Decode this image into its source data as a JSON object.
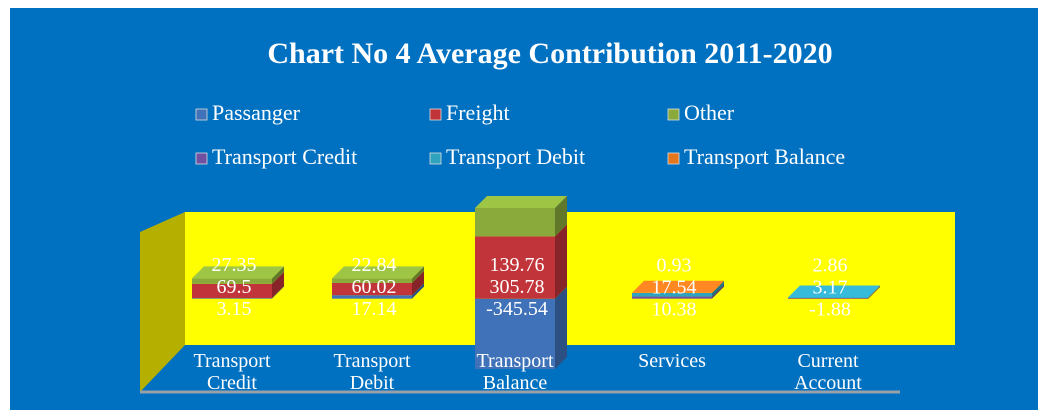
{
  "chart_data": {
    "type": "bar3d-stacked",
    "title": "Chart No 4 Average Contribution 2011-2020",
    "categories": [
      "Transport Credit",
      "Transport Debit",
      "Transport Balance",
      "Services",
      "Current Account"
    ],
    "series": [
      {
        "name": "Passanger",
        "color": "#3f72b8",
        "values": [
          3.15,
          17.14,
          -345.54,
          null,
          null
        ]
      },
      {
        "name": "Freight",
        "color": "#c0343a",
        "values": [
          69.5,
          60.02,
          305.78,
          null,
          null
        ]
      },
      {
        "name": "Other",
        "color": "#8aab3c",
        "values": [
          27.35,
          22.84,
          139.76,
          null,
          null
        ]
      },
      {
        "name": "Transport Credit",
        "color": "#7050a0",
        "values": [
          null,
          null,
          null,
          10.38,
          3.17
        ]
      },
      {
        "name": "Transport Debit",
        "color": "#2fa3be",
        "values": [
          null,
          null,
          null,
          17.54,
          2.86
        ]
      },
      {
        "name": "Transport Balance",
        "color": "#e4761e",
        "values": [
          null,
          null,
          null,
          0.93,
          -1.88
        ]
      }
    ],
    "ylim": [
      -360,
      460
    ]
  }
}
